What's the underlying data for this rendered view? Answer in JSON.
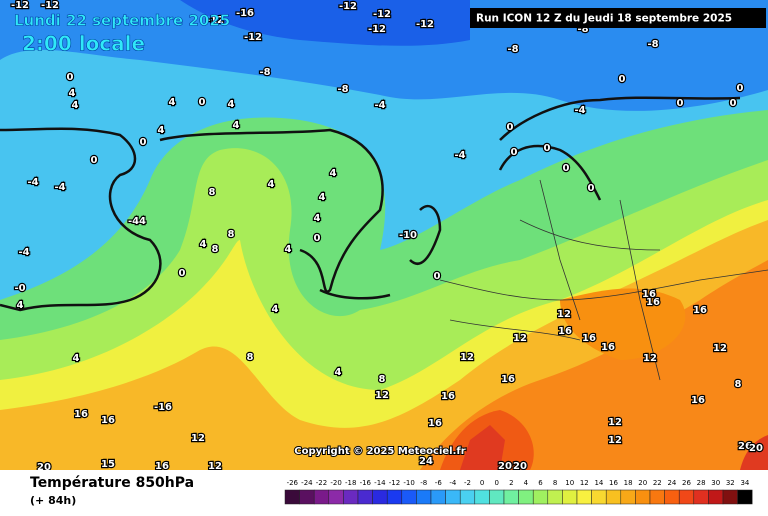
{
  "header": {
    "title": "Lundi 22 septembre 2025",
    "time": "2:00 locale",
    "run": "Run ICON 12 Z du Jeudi 18 septembre 2025"
  },
  "copyright": "Copyright © 2025 Meteociel.fr",
  "footer": {
    "parameter": "Température 850hPa",
    "lead": "(+ 84h)"
  },
  "scale": {
    "labels": [
      -26,
      -24,
      -22,
      -20,
      -18,
      -16,
      -14,
      -12,
      -10,
      -8,
      -6,
      -4,
      -2,
      0,
      0,
      2,
      4,
      6,
      8,
      10,
      12,
      14,
      16,
      18,
      20,
      22,
      24,
      26,
      28,
      30,
      32,
      34
    ],
    "colors": [
      "#3a0a3a",
      "#5a1060",
      "#7a1a8a",
      "#8c2aa8",
      "#6a2ac0",
      "#4a2ad0",
      "#2a2ae0",
      "#1a3af0",
      "#1a5af8",
      "#1a7af8",
      "#2a9af8",
      "#3ab8f8",
      "#4ad0f0",
      "#50e0e0",
      "#60e8c0",
      "#70f0a0",
      "#80f080",
      "#a0f060",
      "#c0f050",
      "#e0f040",
      "#f8f040",
      "#f8d830",
      "#f8c020",
      "#f8a818",
      "#f89010",
      "#f87810",
      "#f86010",
      "#f04818",
      "#e03020",
      "#c01818",
      "#801010",
      "#000000"
    ]
  },
  "contour_labels": [
    "-12",
    "-12",
    "-12",
    "-16",
    "-12",
    "-12",
    "-12",
    "-12",
    "-12",
    "-8",
    "-8",
    "-8",
    "-8",
    "-8",
    "-4",
    "0",
    "4",
    "4",
    "4",
    "0",
    "4",
    "4",
    "4",
    "0",
    "0",
    "-4",
    "-4",
    "-44",
    "8",
    "4",
    "4",
    "4",
    "4",
    "0",
    "8",
    "4",
    "8",
    "0",
    "4",
    "4",
    "8",
    "4",
    "8",
    "12",
    "12",
    "12",
    "16",
    "16",
    "16",
    "12",
    "16",
    "16",
    "16",
    "16",
    "16",
    "12",
    "12",
    "8",
    "16",
    "12",
    "12",
    "16",
    "-16",
    "16",
    "16",
    "12",
    "20",
    "15",
    "16",
    "12",
    "24",
    "20",
    "20",
    "26",
    "20",
    "-4",
    "-10",
    "0",
    "0",
    "0",
    "0",
    "0",
    "0",
    "0",
    "0",
    "0",
    "0",
    "-4",
    "-4",
    "-0",
    "4",
    "4"
  ]
}
